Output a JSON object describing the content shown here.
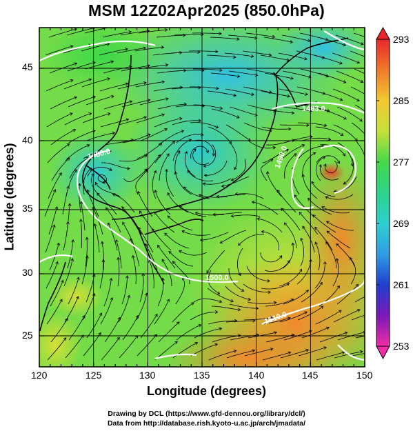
{
  "title": "MSM 12Z02Apr2025 (850.0hPa)",
  "x_axis": {
    "label": "Longitude (degrees)",
    "ticks": [
      "120",
      "125",
      "130",
      "135",
      "140",
      "145",
      "150"
    ]
  },
  "y_axis": {
    "label": "Latitude  (degrees)",
    "ticks": [
      "25",
      "30",
      "35",
      "40",
      "45"
    ]
  },
  "colorbar": {
    "labels": [
      "293",
      "285",
      "277",
      "269",
      "261",
      "253"
    ],
    "colors": [
      "#e8272b",
      "#f07a2a",
      "#f2c931",
      "#9ee43c",
      "#2fd34a",
      "#2cd1b0",
      "#33b9e6",
      "#2a6be0",
      "#1c27c4",
      "#5a18b0",
      "#c21bc0",
      "#f02ca8"
    ]
  },
  "contour_labels": [
    "1483.0",
    "1480.0",
    "1490.0",
    "1500.0",
    "1510.0"
  ],
  "credits": {
    "line1": "Drawing by DCL (https://www.gfd-dennou.org/library/dcl/)",
    "line2": "Data from http://database.rish.kyoto-u.ac.jp/arch/jmadata/"
  }
}
